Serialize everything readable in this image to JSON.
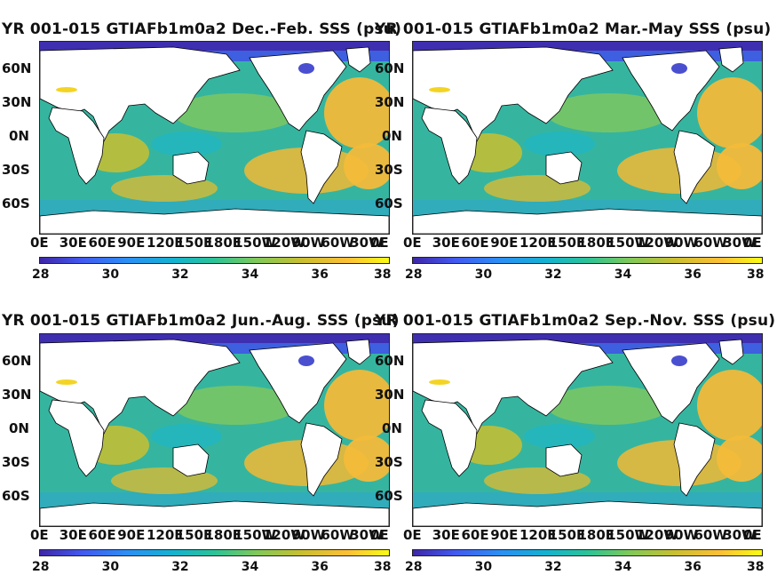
{
  "colorbar_ticks": [
    "28",
    "30",
    "32",
    "34",
    "36",
    "38"
  ],
  "lat_labels": [
    "60N",
    "30N",
    "0N",
    "30S",
    "60S"
  ],
  "lon_labels": [
    "0E",
    "30E",
    "60E",
    "90E",
    "120E",
    "150E",
    "180E",
    "150W",
    "120W",
    "90W",
    "60W",
    "30W",
    "0E"
  ],
  "colormap": [
    "#3e26a8",
    "#4259ef",
    "#2c8ff5",
    "#14b2d1",
    "#2cc397",
    "#7fc95a",
    "#c9bf30",
    "#fdbf36",
    "#f9fb14"
  ],
  "panels": [
    {
      "title": "YR 001-015 GTIAFb1m0a2 Dec.-Feb. SSS (psu)"
    },
    {
      "title": "YR 001-015 GTIAFb1m0a2 Mar.-May SSS (psu)"
    },
    {
      "title": "YR 001-015 GTIAFb1m0a2 Jun.-Aug. SSS (psu)"
    },
    {
      "title": "YR 001-015 GTIAFb1m0a2 Sep.-Nov. SSS (psu)"
    }
  ]
}
